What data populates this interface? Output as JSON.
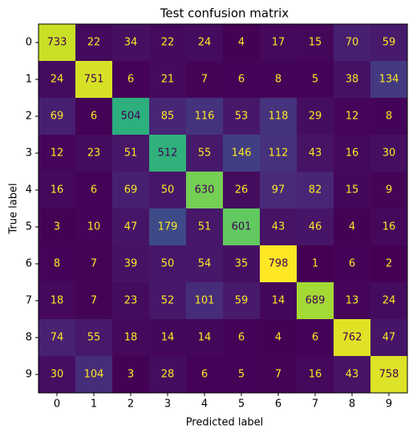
{
  "chart_data": {
    "type": "heatmap",
    "title": "Test confusion matrix",
    "x_label": "Predicted label",
    "y_label": "True label",
    "x_categories": [
      "0",
      "1",
      "2",
      "3",
      "4",
      "5",
      "6",
      "7",
      "8",
      "9"
    ],
    "y_categories": [
      "0",
      "1",
      "2",
      "3",
      "4",
      "5",
      "6",
      "7",
      "8",
      "9"
    ],
    "colormap": "viridis",
    "values": [
      [
        733,
        22,
        34,
        22,
        24,
        4,
        17,
        15,
        70,
        59
      ],
      [
        24,
        751,
        6,
        21,
        7,
        6,
        8,
        5,
        38,
        134
      ],
      [
        69,
        6,
        504,
        85,
        116,
        53,
        118,
        29,
        12,
        8
      ],
      [
        12,
        23,
        51,
        512,
        55,
        146,
        112,
        43,
        16,
        30
      ],
      [
        16,
        6,
        69,
        50,
        630,
        26,
        97,
        82,
        15,
        9
      ],
      [
        3,
        10,
        47,
        179,
        51,
        601,
        43,
        46,
        4,
        16
      ],
      [
        8,
        7,
        39,
        50,
        54,
        35,
        798,
        1,
        6,
        2
      ],
      [
        18,
        7,
        23,
        52,
        101,
        59,
        14,
        689,
        13,
        24
      ],
      [
        74,
        55,
        18,
        14,
        14,
        6,
        4,
        6,
        762,
        47
      ],
      [
        30,
        104,
        3,
        28,
        6,
        5,
        7,
        16,
        43,
        758
      ]
    ]
  }
}
